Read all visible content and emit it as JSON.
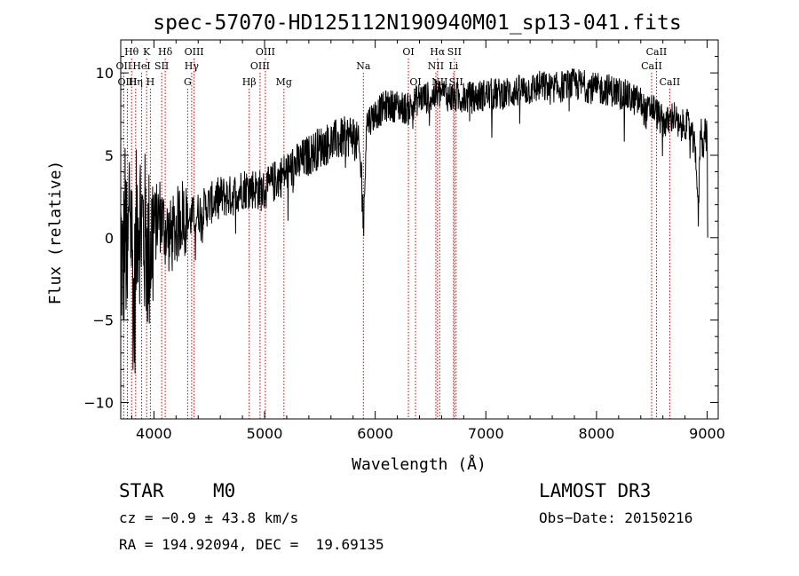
{
  "chart_data": {
    "type": "line",
    "title": "spec-57070-HD125112N190940M01_sp13-041.fits",
    "xlabel": "Wavelength (Å)",
    "ylabel": "Flux (relative)",
    "xlim": [
      3700,
      9100
    ],
    "ylim": [
      -11,
      12
    ],
    "xticks": [
      4000,
      5000,
      6000,
      7000,
      8000,
      9000
    ],
    "yticks": [
      -10,
      -5,
      0,
      5,
      10
    ],
    "envelope": [
      {
        "x": 3700,
        "y": 0.0
      },
      {
        "x": 3720,
        "y": -2.5
      },
      {
        "x": 3740,
        "y": 1.0
      },
      {
        "x": 3760,
        "y": -3.0
      },
      {
        "x": 3780,
        "y": 3.0
      },
      {
        "x": 3800,
        "y": 0.0
      },
      {
        "x": 3820,
        "y": -5.0
      },
      {
        "x": 3850,
        "y": 2.0
      },
      {
        "x": 3900,
        "y": 0.5
      },
      {
        "x": 3950,
        "y": -1.0
      },
      {
        "x": 4000,
        "y": 0.5
      },
      {
        "x": 4050,
        "y": 1.5
      },
      {
        "x": 4100,
        "y": 0.5
      },
      {
        "x": 4150,
        "y": 0.0
      },
      {
        "x": 4200,
        "y": 0.5
      },
      {
        "x": 4250,
        "y": 1.5
      },
      {
        "x": 4300,
        "y": 1.0
      },
      {
        "x": 4400,
        "y": 1.5
      },
      {
        "x": 4500,
        "y": 2.0
      },
      {
        "x": 4600,
        "y": 2.5
      },
      {
        "x": 4700,
        "y": 2.5
      },
      {
        "x": 4800,
        "y": 3.0
      },
      {
        "x": 4900,
        "y": 3.0
      },
      {
        "x": 5000,
        "y": 2.8
      },
      {
        "x": 5100,
        "y": 3.5
      },
      {
        "x": 5200,
        "y": 4.0
      },
      {
        "x": 5300,
        "y": 4.5
      },
      {
        "x": 5400,
        "y": 5.0
      },
      {
        "x": 5500,
        "y": 5.5
      },
      {
        "x": 5600,
        "y": 5.8
      },
      {
        "x": 5700,
        "y": 6.0
      },
      {
        "x": 5800,
        "y": 6.3
      },
      {
        "x": 5850,
        "y": 5.5
      },
      {
        "x": 5880,
        "y": 3.5
      },
      {
        "x": 5895,
        "y": 0.5
      },
      {
        "x": 5905,
        "y": 3.0
      },
      {
        "x": 5920,
        "y": 7.0
      },
      {
        "x": 6000,
        "y": 7.5
      },
      {
        "x": 6100,
        "y": 8.0
      },
      {
        "x": 6200,
        "y": 8.0
      },
      {
        "x": 6300,
        "y": 7.8
      },
      {
        "x": 6400,
        "y": 8.5
      },
      {
        "x": 6500,
        "y": 8.5
      },
      {
        "x": 6600,
        "y": 8.8
      },
      {
        "x": 6700,
        "y": 8.5
      },
      {
        "x": 6800,
        "y": 8.5
      },
      {
        "x": 6900,
        "y": 8.5
      },
      {
        "x": 7000,
        "y": 8.7
      },
      {
        "x": 7100,
        "y": 8.7
      },
      {
        "x": 7200,
        "y": 8.8
      },
      {
        "x": 7300,
        "y": 8.9
      },
      {
        "x": 7400,
        "y": 9.0
      },
      {
        "x": 7500,
        "y": 9.2
      },
      {
        "x": 7600,
        "y": 9.0
      },
      {
        "x": 7700,
        "y": 9.2
      },
      {
        "x": 7800,
        "y": 9.3
      },
      {
        "x": 7900,
        "y": 9.2
      },
      {
        "x": 8000,
        "y": 9.0
      },
      {
        "x": 8100,
        "y": 9.0
      },
      {
        "x": 8200,
        "y": 8.8
      },
      {
        "x": 8300,
        "y": 8.5
      },
      {
        "x": 8400,
        "y": 8.2
      },
      {
        "x": 8450,
        "y": 7.5
      },
      {
        "x": 8500,
        "y": 8.0
      },
      {
        "x": 8550,
        "y": 7.5
      },
      {
        "x": 8600,
        "y": 7.0
      },
      {
        "x": 8650,
        "y": 7.0
      },
      {
        "x": 8700,
        "y": 7.5
      },
      {
        "x": 8750,
        "y": 6.5
      },
      {
        "x": 8800,
        "y": 7.0
      },
      {
        "x": 8850,
        "y": 6.5
      },
      {
        "x": 8900,
        "y": 5.0
      },
      {
        "x": 8920,
        "y": 1.0
      },
      {
        "x": 8940,
        "y": 7.0
      },
      {
        "x": 8960,
        "y": 5.5
      },
      {
        "x": 8980,
        "y": 6.5
      },
      {
        "x": 9000,
        "y": 6.0
      },
      {
        "x": 9005,
        "y": 0.0
      }
    ],
    "line_markers": [
      {
        "label": "Hθ",
        "x": 3798,
        "row": 0
      },
      {
        "label": "OII",
        "x": 3727,
        "row": 1
      },
      {
        "label": "OIII",
        "x": 3760,
        "row": 2
      },
      {
        "label": "K",
        "x": 3934,
        "row": 0
      },
      {
        "label": "HeI",
        "x": 3889,
        "row": 1
      },
      {
        "label": "Hη",
        "x": 3835,
        "row": 2
      },
      {
        "label": "H",
        "x": 3968,
        "row": 2
      },
      {
        "label": "Hδ",
        "x": 4102,
        "row": 0
      },
      {
        "label": "SII",
        "x": 4070,
        "row": 1
      },
      {
        "label": "OIII",
        "x": 4363,
        "row": 0
      },
      {
        "label": "Hγ",
        "x": 4341,
        "row": 1
      },
      {
        "label": "G",
        "x": 4305,
        "row": 2
      },
      {
        "label": "OIII",
        "x": 5007,
        "row": 0
      },
      {
        "label": "OIII",
        "x": 4959,
        "row": 1
      },
      {
        "label": "Hβ",
        "x": 4861,
        "row": 2
      },
      {
        "label": "Mg",
        "x": 5175,
        "row": 2
      },
      {
        "label": "Na",
        "x": 5893,
        "row": 1
      },
      {
        "label": "OI",
        "x": 6300,
        "row": 0
      },
      {
        "label": "OI",
        "x": 6364,
        "row": 2
      },
      {
        "label": "Hα",
        "x": 6563,
        "row": 0
      },
      {
        "label": "NII",
        "x": 6548,
        "row": 1
      },
      {
        "label": "NII",
        "x": 6583,
        "row": 2
      },
      {
        "label": "SII",
        "x": 6716,
        "row": 0
      },
      {
        "label": "Li",
        "x": 6708,
        "row": 1
      },
      {
        "label": "SII",
        "x": 6731,
        "row": 2
      },
      {
        "label": "CaII",
        "x": 8542,
        "row": 0
      },
      {
        "label": "CaII",
        "x": 8498,
        "row": 1
      },
      {
        "label": "CaII",
        "x": 8662,
        "row": 2
      }
    ]
  },
  "info": {
    "class_type": "STAR",
    "subclass": "M0",
    "survey": "LAMOST DR3",
    "cz": "cz = −0.9 ± 43.8 km/s",
    "obs_date": "Obs−Date: 20150216",
    "coords": "RA = 194.92094, DEC =  19.69135"
  },
  "colors": {
    "line": "#000000",
    "marker": "#cc0000",
    "background": "#ffffff"
  }
}
